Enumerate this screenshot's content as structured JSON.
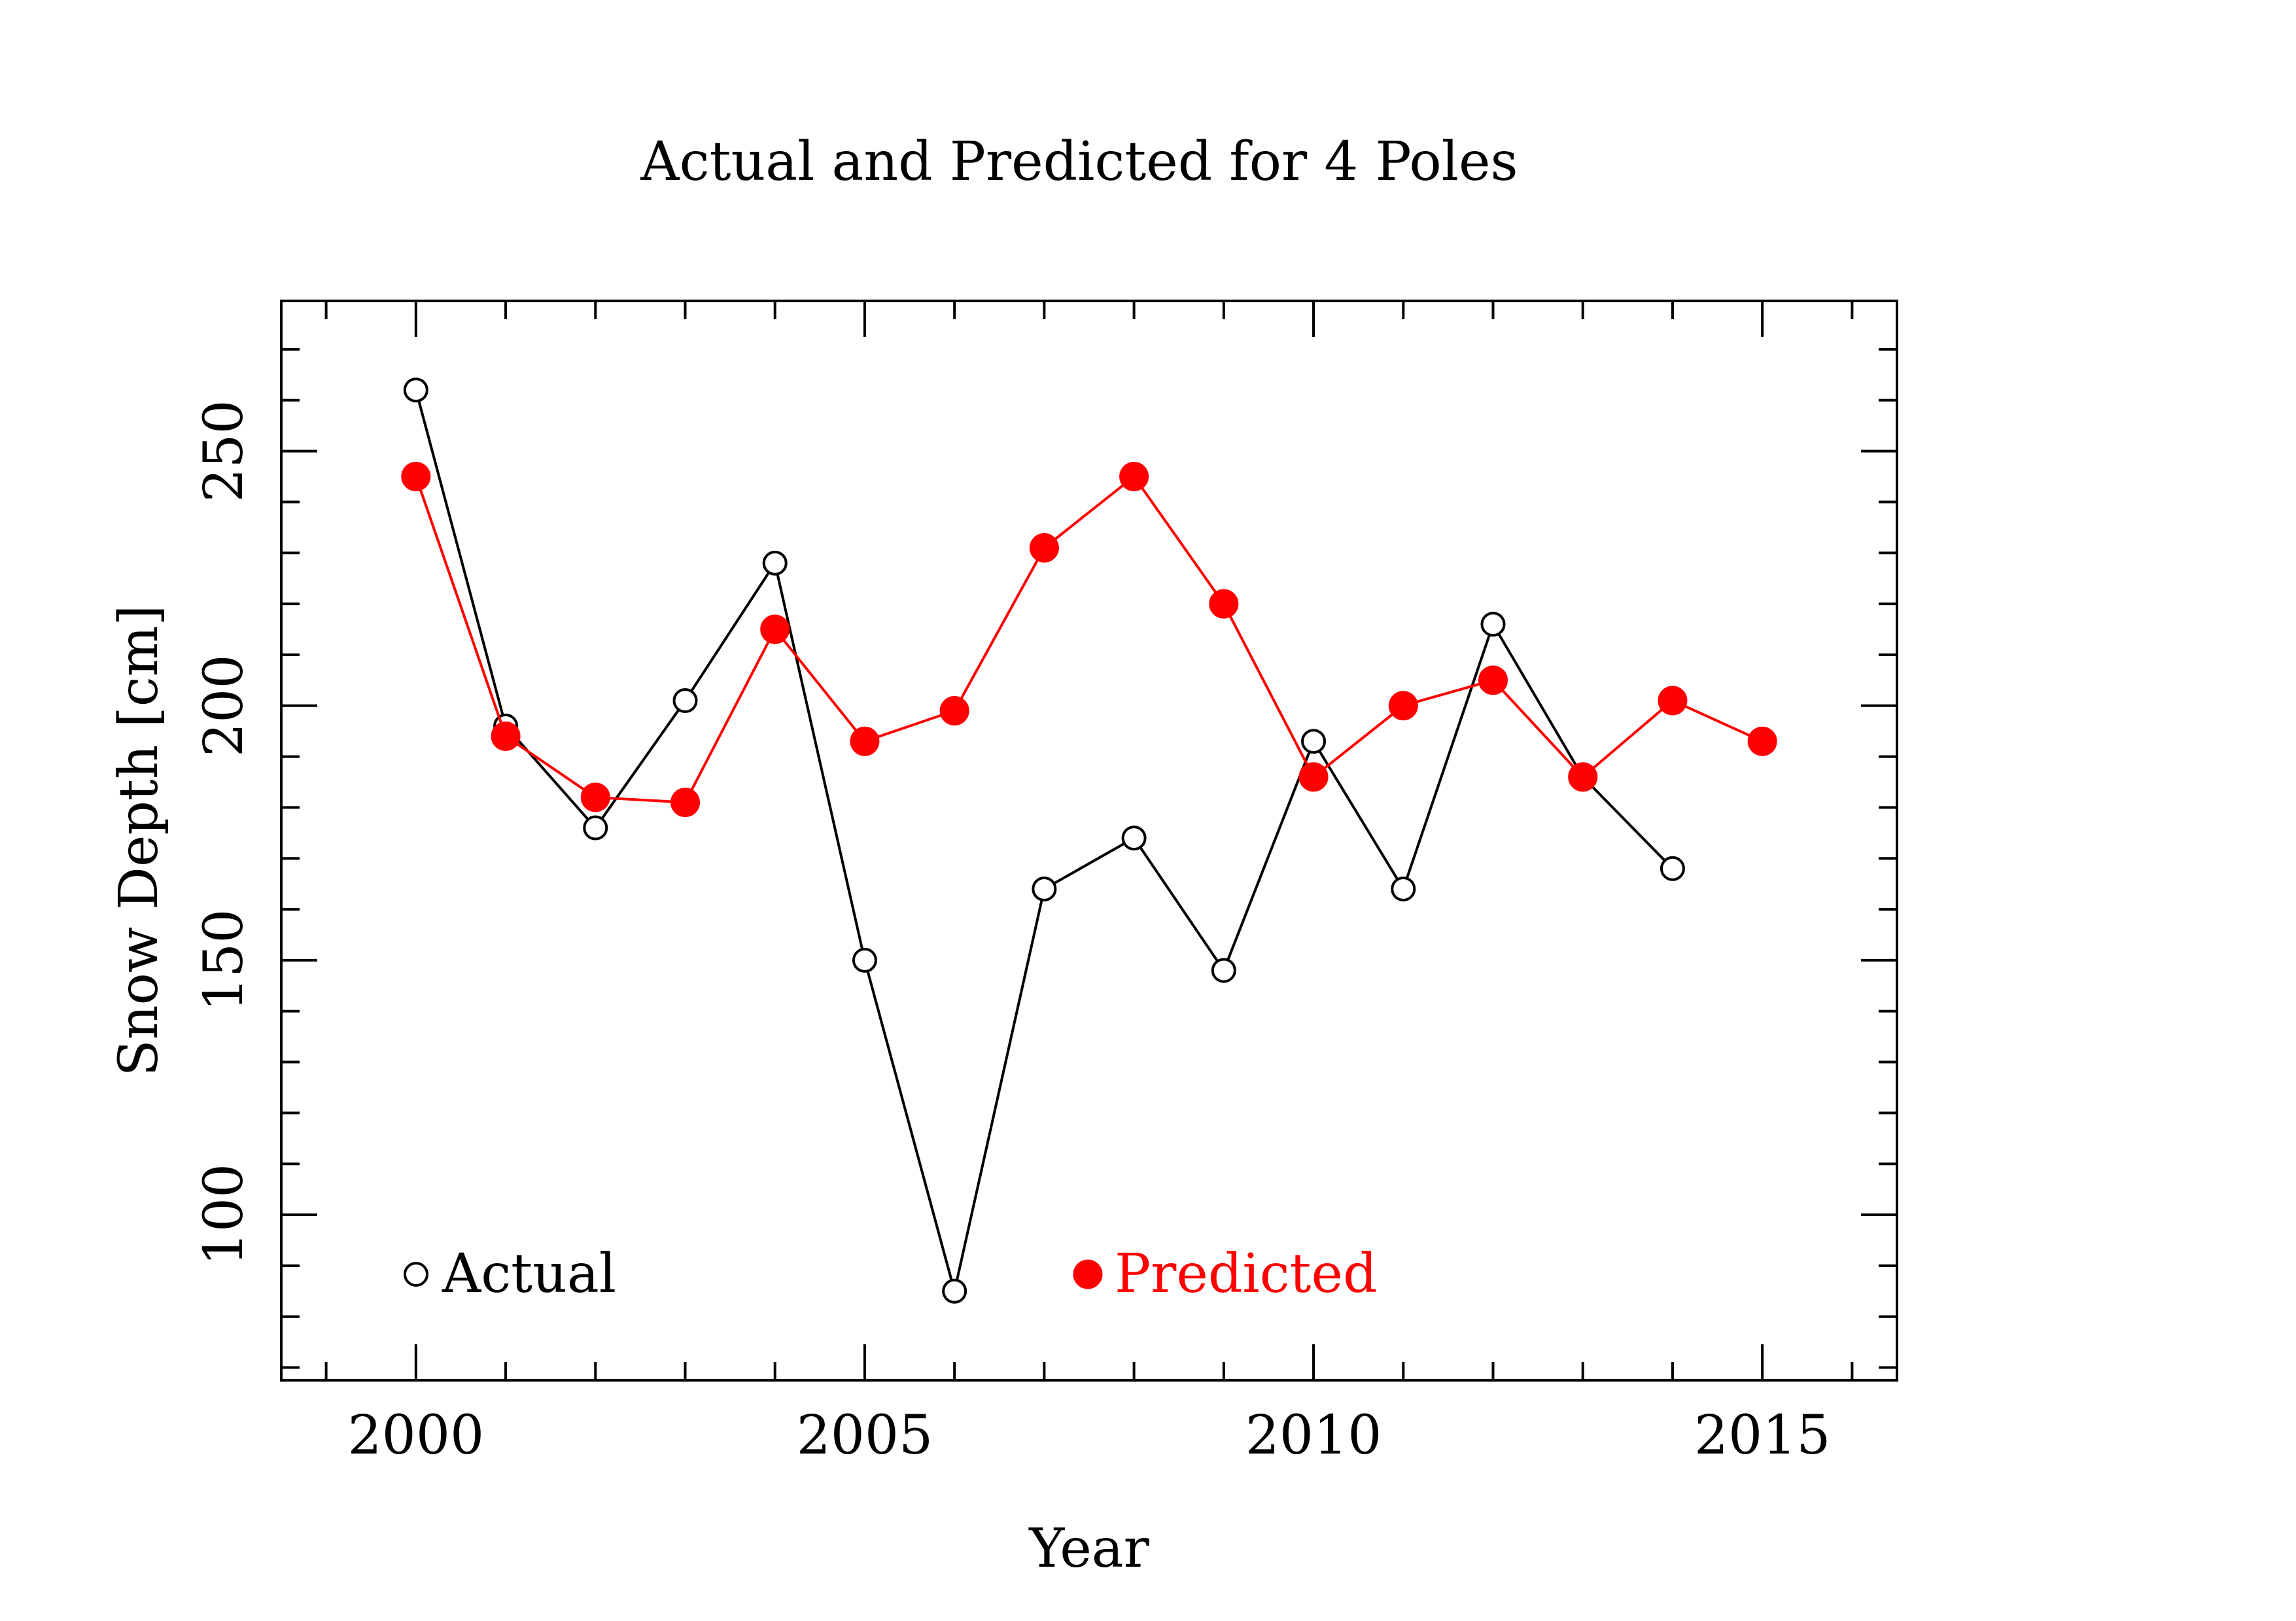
{
  "chart_data": {
    "type": "line",
    "title": "Actual and Predicted for  4 Poles",
    "xlabel": "Year",
    "ylabel": "Snow Depth [cm]",
    "xlim": [
      1998.5,
      2016.5
    ],
    "ylim": [
      67.5,
      279.5
    ],
    "x_major_ticks": [
      2000,
      2005,
      2010,
      2015
    ],
    "y_major_ticks": [
      100,
      150,
      200,
      250
    ],
    "grid": false,
    "legend_placement": "bottom",
    "series": [
      {
        "name": "Actual",
        "marker": "open-circle",
        "color": "#000000",
        "x": [
          2000,
          2001,
          2002,
          2003,
          2004,
          2005,
          2006,
          2007,
          2008,
          2009,
          2010,
          2011,
          2012,
          2013,
          2014
        ],
        "y": [
          262,
          196,
          176,
          201,
          228,
          150,
          85,
          164,
          174,
          148,
          193,
          164,
          216,
          186,
          168
        ]
      },
      {
        "name": "Predicted",
        "marker": "filled-circle",
        "color": "#ff0000",
        "x": [
          2000,
          2001,
          2002,
          2003,
          2004,
          2005,
          2006,
          2007,
          2008,
          2009,
          2010,
          2011,
          2012,
          2013,
          2014,
          2015
        ],
        "y": [
          245,
          194,
          182,
          181,
          215,
          193,
          199,
          231,
          245,
          220,
          186,
          200,
          205,
          186,
          201,
          193
        ]
      }
    ]
  }
}
